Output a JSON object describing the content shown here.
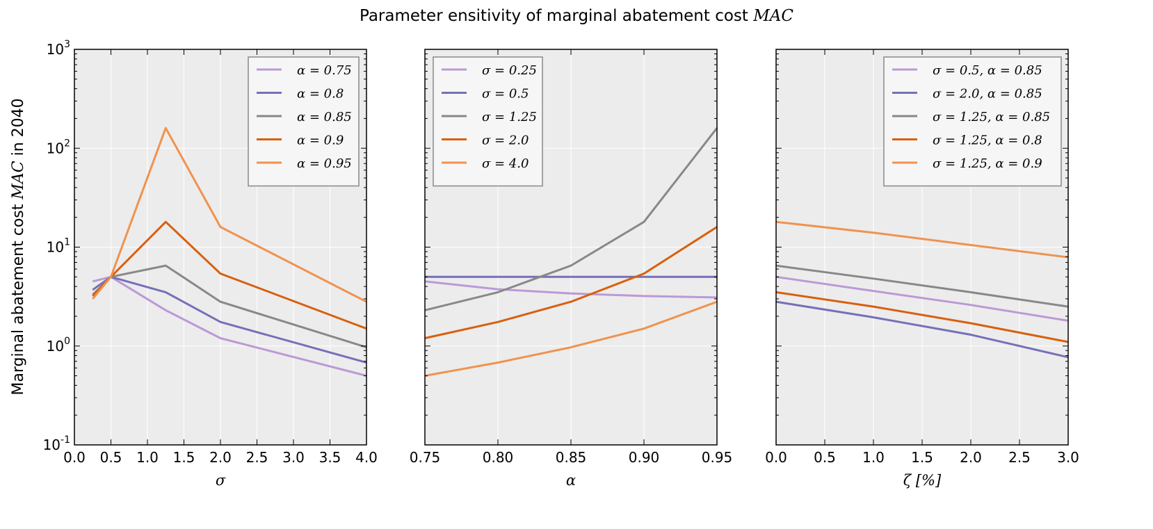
{
  "figure": {
    "title_prefix": "Parameter ensitivity of marginal abatement cost ",
    "title_math": "MAC",
    "ylabel_prefix": "Marginal abatement cost ",
    "ylabel_math": "MAC",
    "ylabel_suffix": " in 2040",
    "background": "#ececec",
    "colors": [
      "#bb99d6",
      "#7570b8",
      "#888888",
      "#d95f0e",
      "#f0924f"
    ]
  },
  "chart_data": [
    {
      "type": "line",
      "xlabel": "σ",
      "ylabel": "Marginal abatement cost MAC in 2040",
      "yscale": "log",
      "xlim": [
        0,
        4
      ],
      "ylim": [
        0.1,
        1000
      ],
      "xticks": [
        "0.0",
        "0.5",
        "1.0",
        "1.5",
        "2.0",
        "2.5",
        "3.0",
        "3.5",
        "4.0"
      ],
      "yticks": [
        {
          "base": "10",
          "exp": "-1"
        },
        {
          "base": "10",
          "exp": "0"
        },
        {
          "base": "10",
          "exp": "1"
        },
        {
          "base": "10",
          "exp": "2"
        },
        {
          "base": "10",
          "exp": "3"
        }
      ],
      "legend_position": "upper right",
      "x": [
        0.25,
        0.5,
        1.25,
        2.0,
        4.0
      ],
      "series": [
        {
          "name": "α = 0.75",
          "values": [
            4.5,
            5.0,
            2.3,
            1.2,
            0.5
          ]
        },
        {
          "name": "α = 0.8",
          "values": [
            3.7,
            5.0,
            3.5,
            1.75,
            0.68
          ]
        },
        {
          "name": "α = 0.85",
          "values": [
            3.3,
            5.0,
            6.5,
            2.8,
            0.97
          ]
        },
        {
          "name": "α = 0.9",
          "values": [
            3.2,
            5.0,
            18.0,
            5.4,
            1.5
          ]
        },
        {
          "name": "α = 0.95",
          "values": [
            3.0,
            5.0,
            160.0,
            16.0,
            2.8
          ]
        }
      ]
    },
    {
      "type": "line",
      "xlabel": "α",
      "yscale": "log",
      "xlim": [
        0.75,
        0.95
      ],
      "ylim": [
        0.1,
        1000
      ],
      "xticks": [
        "0.75",
        "0.80",
        "0.85",
        "0.90",
        "0.95"
      ],
      "legend_position": "upper left",
      "x": [
        0.75,
        0.8,
        0.85,
        0.9,
        0.95
      ],
      "series": [
        {
          "name": "σ = 0.25",
          "values": [
            4.5,
            3.75,
            3.4,
            3.2,
            3.1
          ]
        },
        {
          "name": "σ = 0.5",
          "values": [
            5.0,
            5.0,
            5.0,
            5.0,
            5.0
          ]
        },
        {
          "name": "σ = 1.25",
          "values": [
            2.3,
            3.5,
            6.5,
            18.0,
            160.0
          ]
        },
        {
          "name": "σ = 2.0",
          "values": [
            1.2,
            1.75,
            2.8,
            5.4,
            16.0
          ]
        },
        {
          "name": "σ = 4.0",
          "values": [
            0.5,
            0.68,
            0.97,
            1.5,
            2.8
          ]
        }
      ]
    },
    {
      "type": "line",
      "xlabel": "ζ [%]",
      "yscale": "log",
      "xlim": [
        0,
        3
      ],
      "ylim": [
        0.1,
        1000
      ],
      "xticks": [
        "0.0",
        "0.5",
        "1.0",
        "1.5",
        "2.0",
        "2.5",
        "3.0"
      ],
      "legend_position": "upper right",
      "x": [
        0,
        1,
        2,
        3
      ],
      "series": [
        {
          "name": "σ = 0.5,  α = 0.85",
          "values": [
            5.0,
            3.6,
            2.6,
            1.8
          ]
        },
        {
          "name": "σ = 2.0,  α = 0.85",
          "values": [
            2.8,
            1.95,
            1.3,
            0.77
          ]
        },
        {
          "name": "σ = 1.25,  α = 0.85",
          "values": [
            6.5,
            4.8,
            3.5,
            2.5
          ]
        },
        {
          "name": "σ = 1.25,  α = 0.8",
          "values": [
            3.5,
            2.5,
            1.7,
            1.1
          ]
        },
        {
          "name": "σ = 1.25,  α = 0.9",
          "values": [
            18.0,
            14.0,
            10.5,
            7.9
          ]
        }
      ]
    }
  ]
}
